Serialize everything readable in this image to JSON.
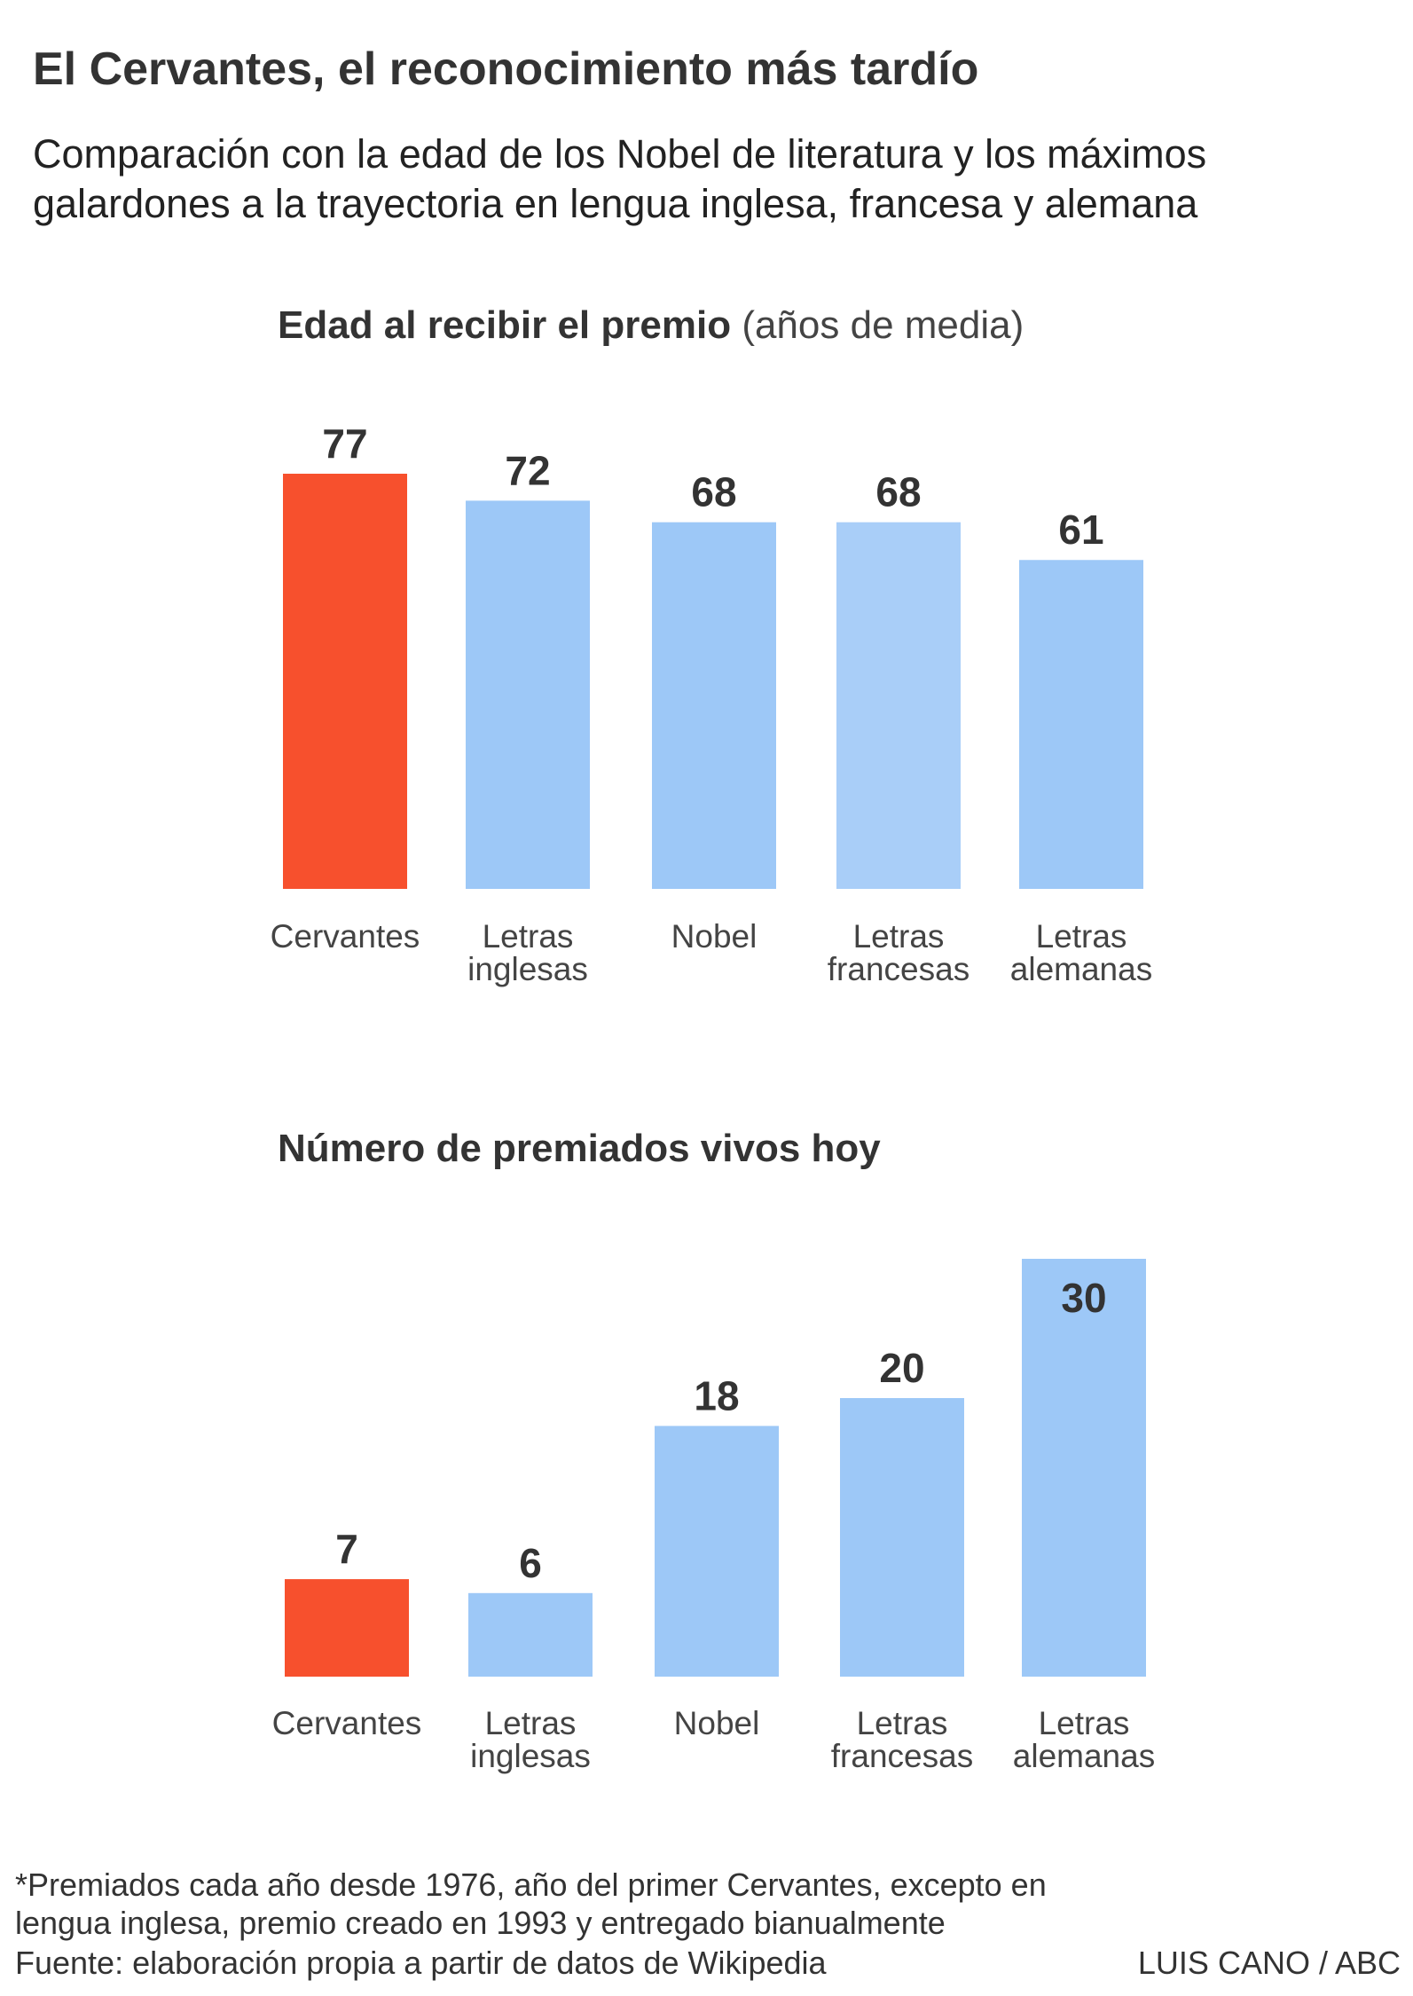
{
  "title": "El Cervantes, el reconocimiento más tardío",
  "subtitle": "Comparación con la edad de los Nobel de literatura y los máximos galardones a la trayectoria en lengua inglesa, francesa y alemana",
  "chart_data": [
    {
      "type": "bar",
      "title": "Edad al recibir el premio",
      "title_note": "(años de media)",
      "categories": [
        [
          "Cervantes"
        ],
        [
          "Letras",
          "inglesas"
        ],
        [
          "Nobel"
        ],
        [
          "Letras",
          "francesas"
        ],
        [
          "Letras",
          "alemanas"
        ]
      ],
      "values": [
        77,
        72,
        68,
        68,
        61
      ],
      "colors": [
        "#F7502D",
        "#9DC8F7",
        "#9DC8F7",
        "#A9CEF8",
        "#9DC8F7"
      ],
      "ylim": [
        0,
        77
      ],
      "grid": false
    },
    {
      "type": "bar",
      "title": "Número de premiados vivos hoy",
      "categories": [
        [
          "Cervantes"
        ],
        [
          "Letras",
          "inglesas"
        ],
        [
          "Nobel"
        ],
        [
          "Letras",
          "francesas"
        ],
        [
          "Letras",
          "alemanas"
        ]
      ],
      "values": [
        7,
        6,
        18,
        20,
        30
      ],
      "colors": [
        "#F7502D",
        "#9DC8F7",
        "#9DC8F7",
        "#9DC8F7",
        "#9DC8F7"
      ],
      "ylim": [
        0,
        30
      ],
      "grid": false
    }
  ],
  "footer": {
    "note_line1": "*Premiados cada año desde 1976, año del primer Cervantes, excepto en",
    "note_line2": "lengua inglesa, premio creado en 1993 y entregado bianualmente",
    "source": "Fuente: elaboración propia a partir de datos de Wikipedia",
    "credit": "LUIS CANO / ABC"
  }
}
